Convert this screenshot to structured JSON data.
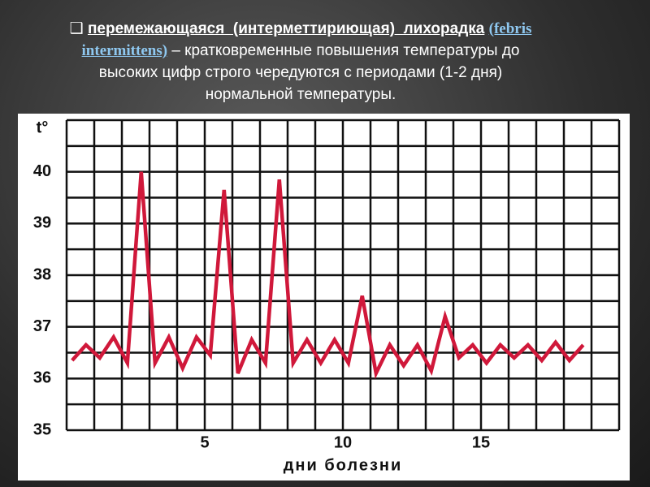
{
  "caption": {
    "marker": "❑",
    "heading": "перемежающаяся  (интерметтириющая)  лихорадка",
    "latin": "(febris intermittens)",
    "description": "– кратковременные повышения температуры до высоких цифр строго чередуются с периодами (1-2 дня) нормальной температуры."
  },
  "chart_data": {
    "type": "line",
    "y_label": "t°",
    "x_label": "дни болезни",
    "x": [
      0.2,
      0.7,
      1.2,
      1.7,
      2.2,
      2.7,
      3.2,
      3.7,
      4.2,
      4.7,
      5.2,
      5.7,
      6.2,
      6.7,
      7.2,
      7.7,
      8.2,
      8.7,
      9.2,
      9.7,
      10.2,
      10.7,
      11.2,
      11.7,
      12.2,
      12.7,
      13.2,
      13.7,
      14.2,
      14.7,
      15.2,
      15.7,
      16.2,
      16.7,
      17.2,
      17.7,
      18.2,
      18.7
    ],
    "series": [
      {
        "color": "#d0183a",
        "values": [
          36.35,
          36.65,
          36.4,
          36.8,
          36.3,
          40.0,
          36.3,
          36.8,
          36.2,
          36.8,
          36.45,
          39.65,
          36.1,
          36.75,
          36.3,
          39.85,
          36.3,
          36.75,
          36.3,
          36.75,
          36.3,
          37.6,
          36.1,
          36.65,
          36.25,
          36.65,
          36.15,
          37.2,
          36.4,
          36.65,
          36.3,
          36.65,
          36.4,
          36.65,
          36.35,
          36.7,
          36.35,
          36.65
        ]
      }
    ],
    "xlim": [
      0,
      20
    ],
    "xticks": [
      5,
      10,
      15
    ],
    "ylim": [
      35,
      41
    ],
    "yticks": [
      35,
      36,
      37,
      38,
      39,
      40
    ],
    "xgrid": [
      0,
      1,
      2,
      3,
      4,
      5,
      6,
      7,
      8,
      9,
      10,
      11,
      12,
      13,
      14,
      15,
      16,
      17,
      18,
      19,
      20
    ],
    "ygrid": [
      35,
      35.5,
      36,
      36.5,
      37,
      37.5,
      38,
      38.5,
      39,
      39.5,
      40,
      40.5,
      41
    ]
  }
}
